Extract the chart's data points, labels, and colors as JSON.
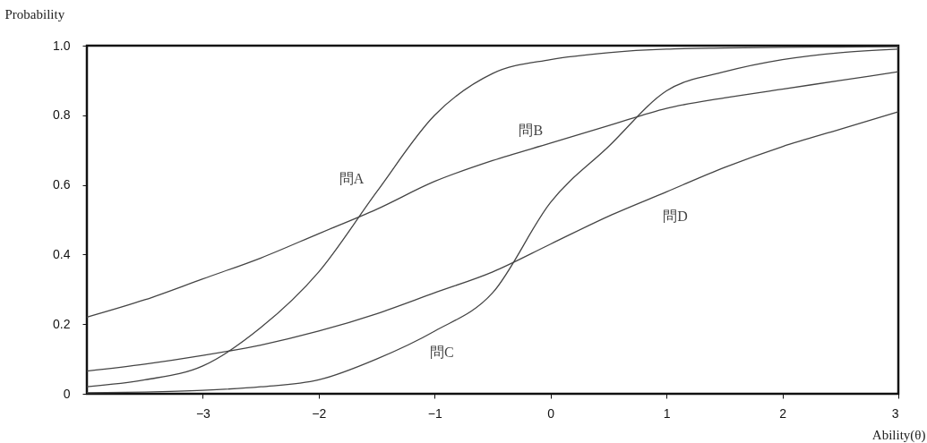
{
  "chart_data": {
    "type": "line",
    "xlabel": "Ability(θ)",
    "ylabel": "Probability",
    "x": [
      -4,
      -3.5,
      -3,
      -2.5,
      -2,
      -1.5,
      -1,
      -0.5,
      0,
      0.5,
      1,
      1.5,
      2,
      2.5,
      3
    ],
    "series": [
      {
        "name": "問A",
        "color": "#444444",
        "values": [
          0.02,
          0.04,
          0.08,
          0.19,
          0.35,
          0.58,
          0.8,
          0.92,
          0.96,
          0.98,
          0.99,
          0.993,
          0.995,
          0.996,
          0.997
        ]
      },
      {
        "name": "問B",
        "color": "#444444",
        "values": [
          0.22,
          0.27,
          0.33,
          0.39,
          0.46,
          0.53,
          0.61,
          0.67,
          0.72,
          0.77,
          0.82,
          0.85,
          0.875,
          0.9,
          0.925
        ]
      },
      {
        "name": "問C",
        "color": "#444444",
        "values": [
          0.003,
          0.005,
          0.01,
          0.02,
          0.04,
          0.1,
          0.18,
          0.29,
          0.55,
          0.71,
          0.87,
          0.925,
          0.96,
          0.98,
          0.99
        ]
      },
      {
        "name": "問D",
        "color": "#444444",
        "values": [
          0.065,
          0.085,
          0.11,
          0.14,
          0.18,
          0.23,
          0.29,
          0.35,
          0.43,
          0.51,
          0.58,
          0.65,
          0.71,
          0.76,
          0.81
        ]
      }
    ],
    "xlim": [
      -4,
      3
    ],
    "xticks": [
      -3,
      -2,
      -1,
      0,
      1,
      2,
      3
    ],
    "ylim": [
      0,
      1
    ],
    "yticks": [
      0,
      0.2,
      0.4,
      0.6,
      0.8,
      {
        "value": 1,
        "label": "1.0"
      }
    ],
    "grid": false,
    "legend": false,
    "line_style": "solid",
    "marker": "none"
  }
}
